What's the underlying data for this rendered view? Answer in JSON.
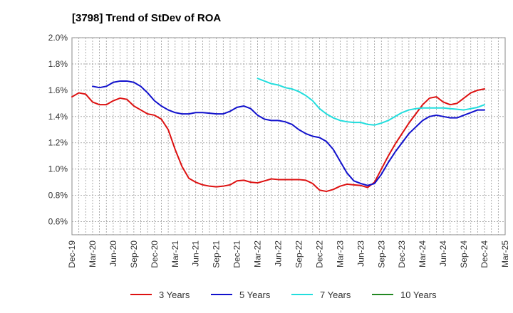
{
  "chart_data": {
    "type": "line",
    "title": "[3798]  Trend of StDev of ROA",
    "xlabel": "",
    "ylabel": "",
    "ylim": [
      0.5,
      2.0
    ],
    "y_ticks": [
      "2.0%",
      "1.8%",
      "1.6%",
      "1.4%",
      "1.2%",
      "1.0%",
      "0.8%",
      "0.6%"
    ],
    "y_tick_values": [
      2.0,
      1.8,
      1.6,
      1.4,
      1.2,
      1.0,
      0.8,
      0.6
    ],
    "x_ticks": [
      "Dec-19",
      "Mar-20",
      "Jun-20",
      "Sep-20",
      "Dec-20",
      "Mar-21",
      "Jun-21",
      "Sep-21",
      "Dec-21",
      "Mar-22",
      "Jun-22",
      "Sep-22",
      "Dec-22",
      "Mar-23",
      "Jun-23",
      "Sep-23",
      "Dec-23",
      "Mar-24",
      "Jun-24",
      "Sep-24",
      "Dec-24",
      "Mar-25"
    ],
    "x_months_range": [
      0,
      63
    ],
    "grid": true,
    "legend_position": "bottom",
    "series": [
      {
        "name": "3 Years",
        "color": "#dd1111",
        "x_month_index": [
          0,
          1,
          2,
          3,
          4,
          5,
          6,
          7,
          8,
          9,
          10,
          11,
          12,
          13,
          14,
          15,
          16,
          17,
          18,
          19,
          20,
          21,
          22,
          23,
          24,
          25,
          26,
          27,
          28,
          29,
          30,
          31,
          32,
          33,
          34,
          35,
          36,
          37,
          38,
          39,
          40,
          41,
          42,
          43,
          44,
          45,
          46,
          47,
          48,
          49,
          50,
          51,
          52,
          53,
          54,
          55,
          56,
          57,
          58,
          59,
          60
        ],
        "values": [
          1.55,
          1.58,
          1.57,
          1.51,
          1.49,
          1.49,
          1.52,
          1.54,
          1.53,
          1.48,
          1.45,
          1.42,
          1.41,
          1.38,
          1.3,
          1.15,
          1.02,
          0.93,
          0.9,
          0.88,
          0.87,
          0.865,
          0.87,
          0.88,
          0.91,
          0.915,
          0.9,
          0.895,
          0.91,
          0.925,
          0.92,
          0.92,
          0.92,
          0.92,
          0.915,
          0.89,
          0.84,
          0.83,
          0.845,
          0.87,
          0.885,
          0.88,
          0.875,
          0.86,
          0.9,
          1.0,
          1.1,
          1.19,
          1.27,
          1.35,
          1.42,
          1.49,
          1.54,
          1.55,
          1.51,
          1.49,
          1.5,
          1.54,
          1.58,
          1.6,
          1.61
        ]
      },
      {
        "name": "5 Years",
        "color": "#1111cc",
        "x_month_index": [
          3,
          4,
          5,
          6,
          7,
          8,
          9,
          10,
          11,
          12,
          13,
          14,
          15,
          16,
          17,
          18,
          19,
          20,
          21,
          22,
          23,
          24,
          25,
          26,
          27,
          28,
          29,
          30,
          31,
          32,
          33,
          34,
          35,
          36,
          37,
          38,
          39,
          40,
          41,
          42,
          43,
          44,
          45,
          46,
          47,
          48,
          49,
          50,
          51,
          52,
          53,
          54,
          55,
          56,
          57,
          58,
          59,
          60
        ],
        "values": [
          1.63,
          1.62,
          1.63,
          1.66,
          1.67,
          1.67,
          1.66,
          1.63,
          1.58,
          1.52,
          1.48,
          1.45,
          1.43,
          1.42,
          1.42,
          1.43,
          1.43,
          1.425,
          1.42,
          1.42,
          1.44,
          1.47,
          1.48,
          1.46,
          1.41,
          1.38,
          1.37,
          1.37,
          1.36,
          1.34,
          1.3,
          1.27,
          1.25,
          1.24,
          1.21,
          1.15,
          1.06,
          0.97,
          0.91,
          0.89,
          0.875,
          0.89,
          0.96,
          1.05,
          1.13,
          1.2,
          1.27,
          1.32,
          1.37,
          1.4,
          1.41,
          1.4,
          1.39,
          1.39,
          1.41,
          1.43,
          1.45,
          1.45
        ]
      },
      {
        "name": "7 Years",
        "color": "#22dddd",
        "x_month_index": [
          27,
          28,
          29,
          30,
          31,
          32,
          33,
          34,
          35,
          36,
          37,
          38,
          39,
          40,
          41,
          42,
          43,
          44,
          45,
          46,
          47,
          48,
          49,
          50,
          51,
          52,
          53,
          54,
          55,
          56,
          57,
          58,
          59,
          60
        ],
        "values": [
          1.69,
          1.67,
          1.65,
          1.64,
          1.62,
          1.61,
          1.59,
          1.56,
          1.52,
          1.46,
          1.42,
          1.39,
          1.37,
          1.36,
          1.355,
          1.355,
          1.34,
          1.335,
          1.35,
          1.37,
          1.4,
          1.43,
          1.45,
          1.46,
          1.465,
          1.465,
          1.465,
          1.465,
          1.46,
          1.455,
          1.45,
          1.46,
          1.47,
          1.49
        ]
      },
      {
        "name": "10 Years",
        "color": "#228822",
        "x_month_index": [],
        "values": []
      }
    ]
  }
}
